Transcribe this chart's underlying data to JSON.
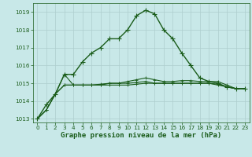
{
  "title": "Graphe pression niveau de la mer (hPa)",
  "background_color": "#c8e8e8",
  "grid_color": "#aecece",
  "line_color": "#1a5c1a",
  "xlim": [
    -0.5,
    23.5
  ],
  "ylim": [
    1012.8,
    1019.5
  ],
  "yticks": [
    1013,
    1014,
    1015,
    1016,
    1017,
    1018,
    1019
  ],
  "xticks": [
    0,
    1,
    2,
    3,
    4,
    5,
    6,
    7,
    8,
    9,
    10,
    11,
    12,
    13,
    14,
    15,
    16,
    17,
    18,
    19,
    20,
    21,
    22,
    23
  ],
  "series": [
    [
      1013.0,
      1013.8,
      1014.4,
      1015.5,
      1015.5,
      1016.2,
      1016.7,
      1017.0,
      1017.5,
      1017.5,
      1018.0,
      1018.8,
      1019.1,
      1018.9,
      1018.0,
      1017.5,
      1016.7,
      1016.0,
      1015.3,
      1015.1,
      1015.0,
      1014.8,
      1014.7,
      1014.7
    ],
    [
      1013.0,
      1013.5,
      1014.4,
      1015.5,
      1014.9,
      1014.9,
      1014.9,
      1014.9,
      1015.0,
      1015.0,
      1015.1,
      1015.2,
      1015.3,
      1015.2,
      1015.1,
      1015.1,
      1015.15,
      1015.15,
      1015.1,
      1015.1,
      1015.1,
      1014.9,
      1014.7,
      1014.7
    ],
    [
      1013.0,
      1013.5,
      1014.4,
      1014.9,
      1014.9,
      1014.9,
      1014.9,
      1014.95,
      1015.0,
      1015.0,
      1015.0,
      1015.05,
      1015.1,
      1015.0,
      1015.0,
      1015.0,
      1015.0,
      1015.0,
      1015.0,
      1015.0,
      1014.9,
      1014.8,
      1014.7,
      1014.7
    ],
    [
      1013.0,
      1013.5,
      1014.4,
      1014.9,
      1014.9,
      1014.9,
      1014.9,
      1014.9,
      1014.9,
      1014.9,
      1014.9,
      1014.95,
      1015.0,
      1015.0,
      1015.0,
      1015.0,
      1015.0,
      1015.0,
      1015.0,
      1015.0,
      1014.95,
      1014.8,
      1014.7,
      1014.7
    ]
  ],
  "marker": "+",
  "marker_size": 4,
  "title_fontsize": 6.5,
  "tick_fontsize": 5.2,
  "lw_main": 1.0,
  "lw_other": 0.8
}
